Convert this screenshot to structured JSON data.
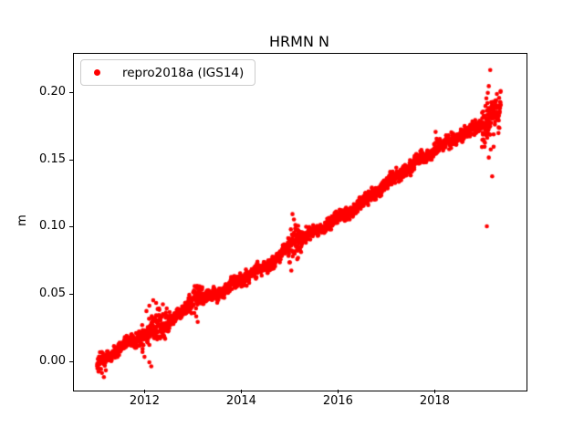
{
  "chart_data": {
    "type": "scatter",
    "title": "HRMN N",
    "xlabel": "",
    "ylabel": "m",
    "grid": false,
    "legend": {
      "position": "upper left",
      "label": "repro2018a (IGS14)",
      "marker_color": "#ff0000"
    },
    "colors": {
      "marker": "#ff0000",
      "spine": "#000000",
      "legend_border": "#cccccc",
      "background": "#ffffff"
    },
    "marker": {
      "shape": "dot",
      "radius_px": 2.3
    },
    "xlim": [
      2010.52,
      2019.88
    ],
    "ylim": [
      -0.021,
      0.229
    ],
    "xticks": [
      2012,
      2014,
      2016,
      2018
    ],
    "xtick_labels": [
      "2012",
      "2014",
      "2016",
      "2018"
    ],
    "yticks": [
      0.0,
      0.05,
      0.1,
      0.15,
      0.2
    ],
    "ytick_labels": [
      "0.00",
      "0.05",
      "0.10",
      "0.15",
      "0.20"
    ],
    "series": [
      {
        "name": "repro2018a (IGS14)",
        "start_year": 2011.0,
        "end_year": 2019.35,
        "points_per_year": 310,
        "seed": 42,
        "base_noise_std": 0.0022,
        "trend_anchors": [
          [
            2011.0,
            -0.001
          ],
          [
            2011.3,
            0.006
          ],
          [
            2011.6,
            0.013
          ],
          [
            2011.95,
            0.021
          ],
          [
            2012.4,
            0.028
          ],
          [
            2012.75,
            0.036
          ],
          [
            2013.0,
            0.049
          ],
          [
            2013.25,
            0.047
          ],
          [
            2013.6,
            0.053
          ],
          [
            2014.0,
            0.062
          ],
          [
            2014.5,
            0.071
          ],
          [
            2015.05,
            0.088
          ],
          [
            2015.5,
            0.097
          ],
          [
            2016.0,
            0.107
          ],
          [
            2016.5,
            0.119
          ],
          [
            2017.0,
            0.133
          ],
          [
            2017.5,
            0.146
          ],
          [
            2018.0,
            0.158
          ],
          [
            2018.5,
            0.168
          ],
          [
            2019.0,
            0.177
          ],
          [
            2019.2,
            0.184
          ],
          [
            2019.35,
            0.188
          ]
        ],
        "noise_windows": [
          {
            "from": 2011.85,
            "to": 2012.5,
            "std": 0.0045
          },
          {
            "from": 2012.9,
            "to": 2013.2,
            "std": 0.004
          },
          {
            "from": 2014.95,
            "to": 2015.25,
            "std": 0.006
          },
          {
            "from": 2018.95,
            "to": 2019.35,
            "std": 0.007
          }
        ],
        "wiggles": [
          {
            "amp": 0.0013,
            "period": 0.55,
            "phase": 1.1
          },
          {
            "amp": 0.0009,
            "period": 0.13,
            "phase": 4.0
          }
        ],
        "outliers": [
          [
            2011.08,
            -0.005
          ],
          [
            2011.1,
            -0.008
          ],
          [
            2011.14,
            -0.011
          ],
          [
            2011.18,
            -0.006
          ],
          [
            2011.94,
            0.01
          ],
          [
            2011.98,
            0.004
          ],
          [
            2012.08,
            0.0
          ],
          [
            2012.12,
            -0.003
          ],
          [
            2012.02,
            0.038
          ],
          [
            2012.08,
            0.042
          ],
          [
            2012.16,
            0.046
          ],
          [
            2012.22,
            0.044
          ],
          [
            2012.28,
            0.04
          ],
          [
            2012.36,
            0.043
          ],
          [
            2012.44,
            0.04
          ],
          [
            2013.05,
            0.034
          ],
          [
            2013.08,
            0.03
          ],
          [
            2015.04,
            0.11
          ],
          [
            2015.07,
            0.106
          ],
          [
            2015.1,
            0.102
          ],
          [
            2016.92,
            0.13
          ],
          [
            2018.0,
            0.171
          ],
          [
            2018.02,
            0.166
          ],
          [
            2019.06,
            0.101
          ],
          [
            2019.17,
            0.138
          ],
          [
            2019.1,
            0.152
          ],
          [
            2019.14,
            0.158
          ],
          [
            2019.02,
            0.163
          ],
          [
            2019.2,
            0.16
          ],
          [
            2019.13,
            0.217
          ],
          [
            2019.1,
            0.205
          ],
          [
            2019.08,
            0.2
          ],
          [
            2019.05,
            0.196
          ],
          [
            2019.15,
            0.193
          ]
        ]
      }
    ]
  }
}
